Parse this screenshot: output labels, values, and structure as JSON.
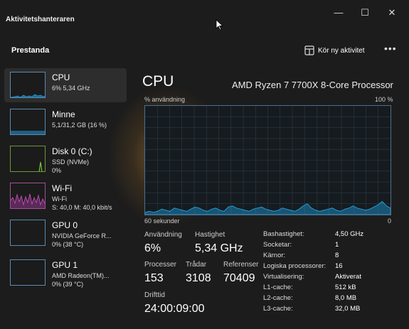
{
  "app_title": "Aktivitetshanteraren",
  "header": {
    "title": "Prestanda",
    "run_task_label": "Kör ny aktivitet",
    "more_label": "•••"
  },
  "window_controls": {
    "minimize": "—",
    "maximize": "☐",
    "close": "✕"
  },
  "sidebar": {
    "items": [
      {
        "name": "CPU",
        "sub1": "6% 5,34 GHz",
        "sub2": ""
      },
      {
        "name": "Minne",
        "sub1": "5,1/31,2 GB (16 %)",
        "sub2": ""
      },
      {
        "name": "Disk 0 (C:)",
        "sub1": "SSD (NVMe)",
        "sub2": "0%"
      },
      {
        "name": "Wi-Fi",
        "sub1": "Wi-Fi",
        "sub2": "S: 40,0 M: 40,0 kbit/s"
      },
      {
        "name": "GPU 0",
        "sub1": "NVIDIA GeForce R...",
        "sub2": "0% (38 °C)"
      },
      {
        "name": "GPU 1",
        "sub1": "AMD Radeon(TM)...",
        "sub2": "0% (39 °C)"
      }
    ]
  },
  "main": {
    "title": "CPU",
    "model": "AMD Ryzen 7 7700X 8-Core Processor",
    "axis_top_left": "% användning",
    "axis_top_right": "100 %",
    "axis_bottom_left": "60 sekunder",
    "axis_bottom_right": "0"
  },
  "stats": {
    "usage_label": "Användning",
    "usage_value": "6%",
    "speed_label": "Hastighet",
    "speed_value": "5,34 GHz",
    "processes_label": "Processer",
    "processes_value": "153",
    "threads_label": "Trådar",
    "threads_value": "3108",
    "handles_label": "Referenser",
    "handles_value": "70409",
    "uptime_label": "Drifttid",
    "uptime_value": "24:00:09:00"
  },
  "specs": [
    {
      "key": "Bashastighet:",
      "value": "4,50 GHz"
    },
    {
      "key": "Socketar:",
      "value": "1"
    },
    {
      "key": "Kärnor:",
      "value": "8"
    },
    {
      "key": "Logiska processorer:",
      "value": "16"
    },
    {
      "key": "Virtualisering:",
      "value": "Aktiverat"
    },
    {
      "key": "L1-cache:",
      "value": "512 kB"
    },
    {
      "key": "L2-cache:",
      "value": "8,0 MB"
    },
    {
      "key": "L3-cache:",
      "value": "32,0 MB"
    }
  ],
  "chart_data": {
    "type": "area",
    "ylim": [
      0,
      100
    ],
    "values": [
      2,
      3,
      2,
      3,
      5,
      4,
      3,
      6,
      5,
      4,
      3,
      5,
      7,
      6,
      4,
      3,
      5,
      6,
      4,
      3,
      7,
      8,
      6,
      5,
      4,
      3,
      5,
      6,
      7,
      5,
      4,
      3,
      4,
      6,
      5,
      4,
      3,
      5,
      8,
      10,
      6,
      4,
      3,
      4,
      5,
      6,
      4,
      3,
      5,
      6,
      8,
      6,
      5,
      4,
      5,
      7,
      9,
      12,
      8,
      6
    ]
  },
  "colors": {
    "accent": "#1f9bd7",
    "wifi": "#c14fb5",
    "disk": "#7cbf3b"
  }
}
